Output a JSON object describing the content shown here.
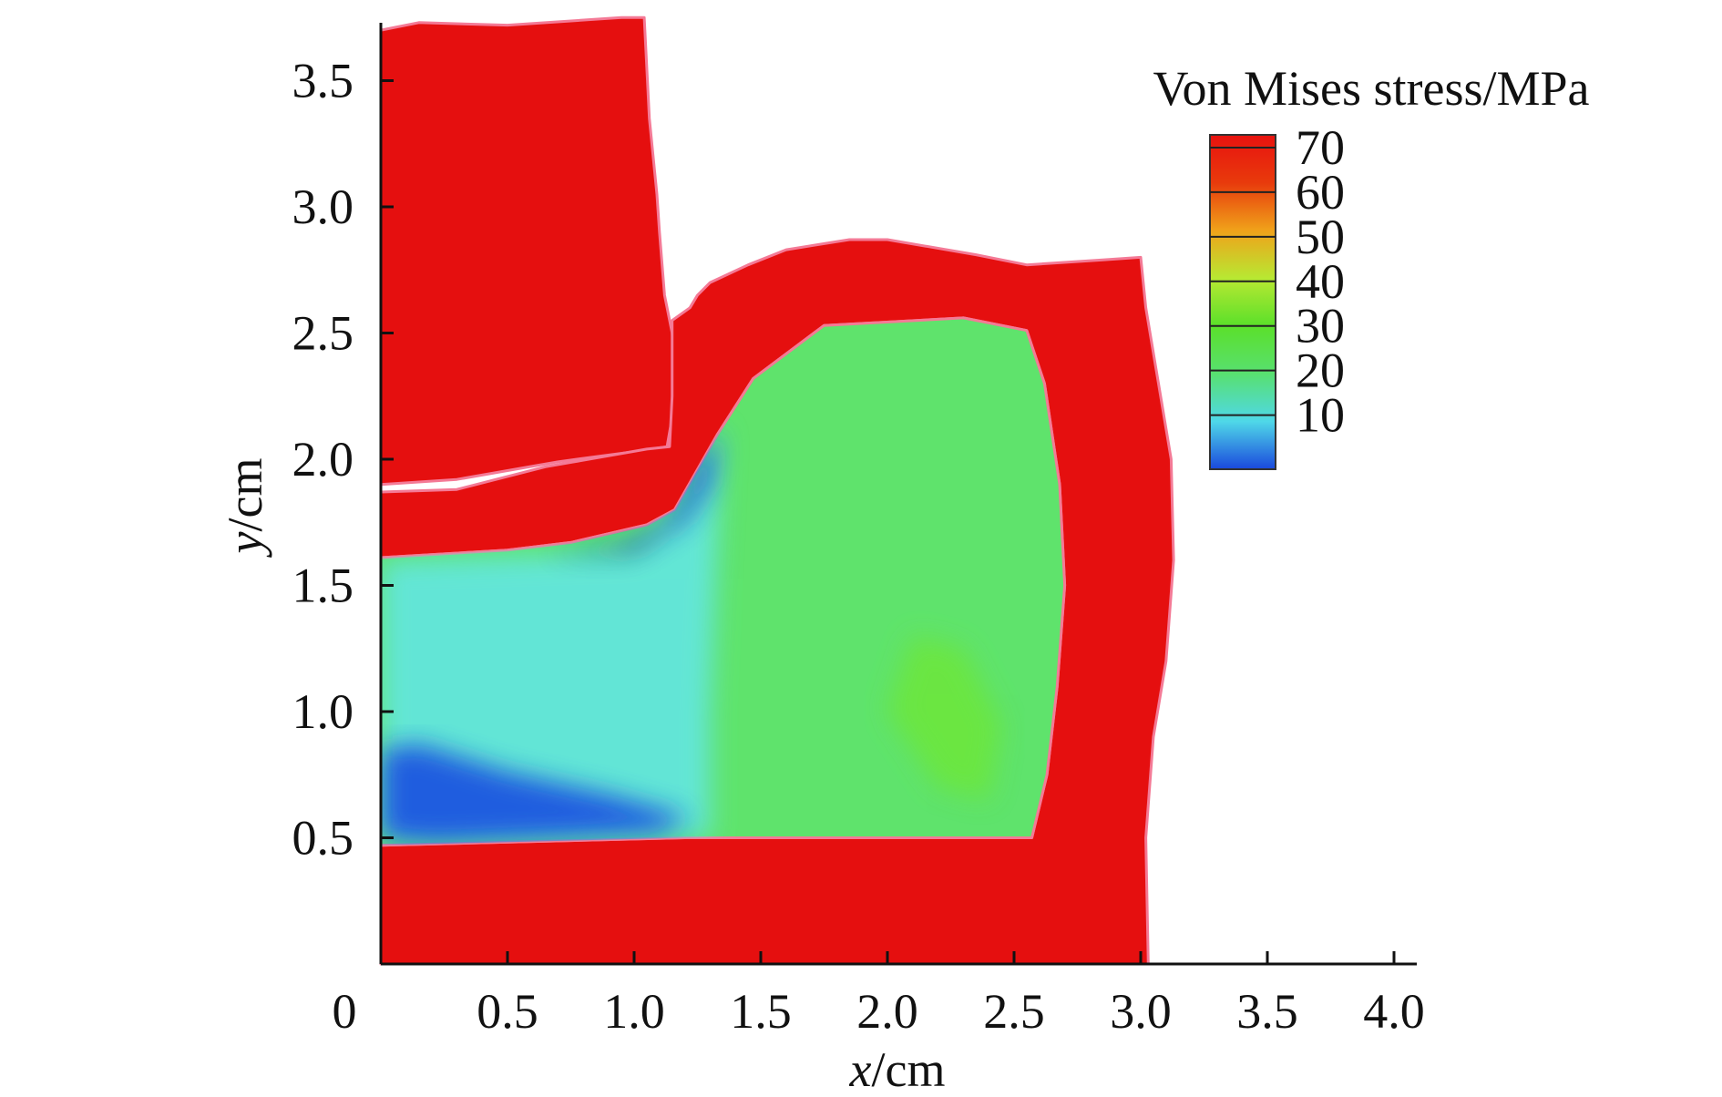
{
  "chart_data": {
    "type": "heatmap",
    "title": "",
    "xlabel": {
      "var": "x",
      "unit": "/cm"
    },
    "ylabel": {
      "var": "y",
      "unit": "/cm"
    },
    "xlim": [
      0,
      4.05
    ],
    "ylim": [
      0,
      3.75
    ],
    "x_ticks": [
      0.5,
      1.0,
      1.5,
      2.0,
      2.5,
      3.0,
      3.5,
      4.0
    ],
    "x_tick_labels": [
      "0.5",
      "1.0",
      "1.5",
      "2.0",
      "2.5",
      "3.0",
      "3.5",
      "4.0"
    ],
    "origin_label": "0",
    "y_ticks": [
      0.5,
      1.0,
      1.5,
      2.0,
      2.5,
      3.0,
      3.5
    ],
    "y_tick_labels": [
      "0.5",
      "1.0",
      "1.5",
      "2.0",
      "2.5",
      "3.0",
      "3.5"
    ],
    "grid": false,
    "legend": {
      "title": "Von Mises stress/MPa",
      "placement": "top-right",
      "levels": [
        70,
        60,
        50,
        40,
        30,
        20,
        10
      ],
      "labels": [
        "70",
        "60",
        "50",
        "40",
        "30",
        "20",
        "10"
      ],
      "colors": [
        "#e8120f",
        "#e83a0c",
        "#f0a21a",
        "#b8e832",
        "#5be02a",
        "#58e070",
        "#4fd8e8",
        "#1a48dd"
      ]
    },
    "regions": [
      {
        "name": "upper-die",
        "fill": "#e50f0f",
        "outline": [
          [
            0,
            3.7
          ],
          [
            0.15,
            3.73
          ],
          [
            0.5,
            3.72
          ],
          [
            0.95,
            3.75
          ],
          [
            1.04,
            3.75
          ],
          [
            1.06,
            3.35
          ],
          [
            1.09,
            3.05
          ],
          [
            1.1,
            2.9
          ],
          [
            1.12,
            2.65
          ],
          [
            1.15,
            2.5
          ],
          [
            1.17,
            2.28
          ],
          [
            1.13,
            2.05
          ],
          [
            1.0,
            2.03
          ],
          [
            0.7,
            1.99
          ],
          [
            0.3,
            1.92
          ],
          [
            0,
            1.9
          ]
        ]
      },
      {
        "name": "lower-die",
        "fill": "#e50f0f",
        "outline": [
          [
            0,
            1.61
          ],
          [
            0.5,
            1.64
          ],
          [
            0.75,
            1.67
          ],
          [
            1.05,
            1.74
          ],
          [
            1.16,
            1.8
          ],
          [
            1.33,
            2.1
          ],
          [
            1.47,
            2.32
          ],
          [
            1.75,
            2.53
          ],
          [
            2.3,
            2.56
          ],
          [
            2.55,
            2.51
          ],
          [
            2.62,
            2.3
          ],
          [
            2.68,
            1.9
          ],
          [
            2.7,
            1.5
          ],
          [
            2.67,
            1.1
          ],
          [
            2.63,
            0.75
          ],
          [
            2.57,
            0.5
          ],
          [
            1.2,
            0.5
          ],
          [
            0,
            0.47
          ],
          [
            0,
            0
          ],
          [
            3.03,
            0
          ],
          [
            3.02,
            0.5
          ],
          [
            3.05,
            0.9
          ],
          [
            3.1,
            1.2
          ],
          [
            3.13,
            1.6
          ],
          [
            3.12,
            2.0
          ],
          [
            3.07,
            2.3
          ],
          [
            3.02,
            2.6
          ],
          [
            3.0,
            2.8
          ],
          [
            2.85,
            2.79
          ],
          [
            2.55,
            2.77
          ],
          [
            2.35,
            2.81
          ],
          [
            2.0,
            2.87
          ],
          [
            1.85,
            2.87
          ],
          [
            1.6,
            2.83
          ],
          [
            1.45,
            2.77
          ],
          [
            1.3,
            2.7
          ],
          [
            1.25,
            2.65
          ],
          [
            1.22,
            2.6
          ],
          [
            1.15,
            2.55
          ],
          [
            1.15,
            2.25
          ],
          [
            1.14,
            2.05
          ],
          [
            1.05,
            2.04
          ],
          [
            0.65,
            1.97
          ],
          [
            0.3,
            1.88
          ],
          [
            0,
            1.87
          ]
        ]
      },
      {
        "name": "workpiece",
        "fill": "#5fe36c",
        "outline": [
          [
            0,
            1.61
          ],
          [
            0.5,
            1.64
          ],
          [
            0.75,
            1.67
          ],
          [
            1.05,
            1.74
          ],
          [
            1.16,
            1.8
          ],
          [
            1.33,
            2.1
          ],
          [
            1.47,
            2.32
          ],
          [
            1.75,
            2.53
          ],
          [
            2.3,
            2.56
          ],
          [
            2.55,
            2.51
          ],
          [
            2.62,
            2.3
          ],
          [
            2.68,
            1.9
          ],
          [
            2.7,
            1.5
          ],
          [
            2.67,
            1.1
          ],
          [
            2.63,
            0.75
          ],
          [
            2.57,
            0.5
          ],
          [
            1.2,
            0.5
          ],
          [
            0,
            0.47
          ]
        ]
      }
    ],
    "stress_zones": [
      {
        "name": "low-stress-zone-upper",
        "value": 12,
        "fill": "#1e56e0",
        "outline": [
          [
            0.65,
            1.62
          ],
          [
            0.95,
            1.66
          ],
          [
            1.12,
            1.74
          ],
          [
            1.2,
            1.85
          ],
          [
            1.26,
            2.02
          ],
          [
            1.33,
            2.1
          ],
          [
            1.3,
            1.9
          ],
          [
            1.2,
            1.75
          ],
          [
            1.0,
            1.63
          ]
        ]
      },
      {
        "name": "low-stress-zone-lower",
        "value": 12,
        "fill": "#1e56e0",
        "outline": [
          [
            0,
            0.85
          ],
          [
            0.15,
            0.87
          ],
          [
            0.5,
            0.76
          ],
          [
            0.9,
            0.67
          ],
          [
            1.22,
            0.58
          ],
          [
            1.1,
            0.52
          ],
          [
            0.7,
            0.5
          ],
          [
            0.2,
            0.48
          ],
          [
            0,
            0.5
          ]
        ]
      },
      {
        "name": "mid-stress-zone",
        "value": 22,
        "fill": "#63e6dc",
        "outline": [
          [
            0,
            1.6
          ],
          [
            1.0,
            1.63
          ],
          [
            1.2,
            1.82
          ],
          [
            1.35,
            2.15
          ],
          [
            1.32,
            1.5
          ],
          [
            1.3,
            1.0
          ],
          [
            1.3,
            0.5
          ],
          [
            0.4,
            0.49
          ],
          [
            0,
            0.5
          ]
        ]
      },
      {
        "name": "high-stress-zone",
        "value": 38,
        "fill": "#6ce640",
        "outline": [
          [
            2.1,
            1.3
          ],
          [
            2.3,
            1.25
          ],
          [
            2.45,
            0.95
          ],
          [
            2.4,
            0.65
          ],
          [
            2.2,
            0.7
          ],
          [
            2.0,
            1.0
          ]
        ]
      }
    ]
  }
}
